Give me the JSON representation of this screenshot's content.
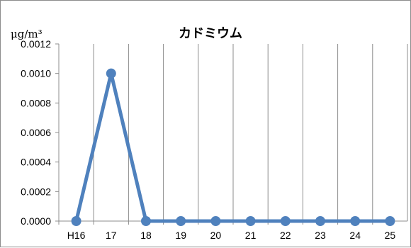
{
  "chart_data": {
    "type": "line",
    "title": "カドミウム",
    "ylabel": "μg/m³",
    "xlabel": "",
    "categories": [
      "H16",
      "17",
      "18",
      "19",
      "20",
      "21",
      "22",
      "23",
      "24",
      "25"
    ],
    "series": [
      {
        "values": [
          0.0,
          0.001,
          0.0,
          0.0,
          0.0,
          0.0,
          0.0,
          0.0,
          0.0,
          0.0
        ]
      }
    ],
    "ylim": [
      0,
      0.0012
    ],
    "yticks": [
      "0.0000",
      "0.0002",
      "0.0004",
      "0.0006",
      "0.0008",
      "0.0010",
      "0.0012"
    ],
    "grid": {
      "vertical": true,
      "horizontal": false
    },
    "legend": "none",
    "colors": {
      "line": "#4f81bd",
      "grid": "#8c8c8c",
      "axis": "#8c8c8c"
    }
  }
}
